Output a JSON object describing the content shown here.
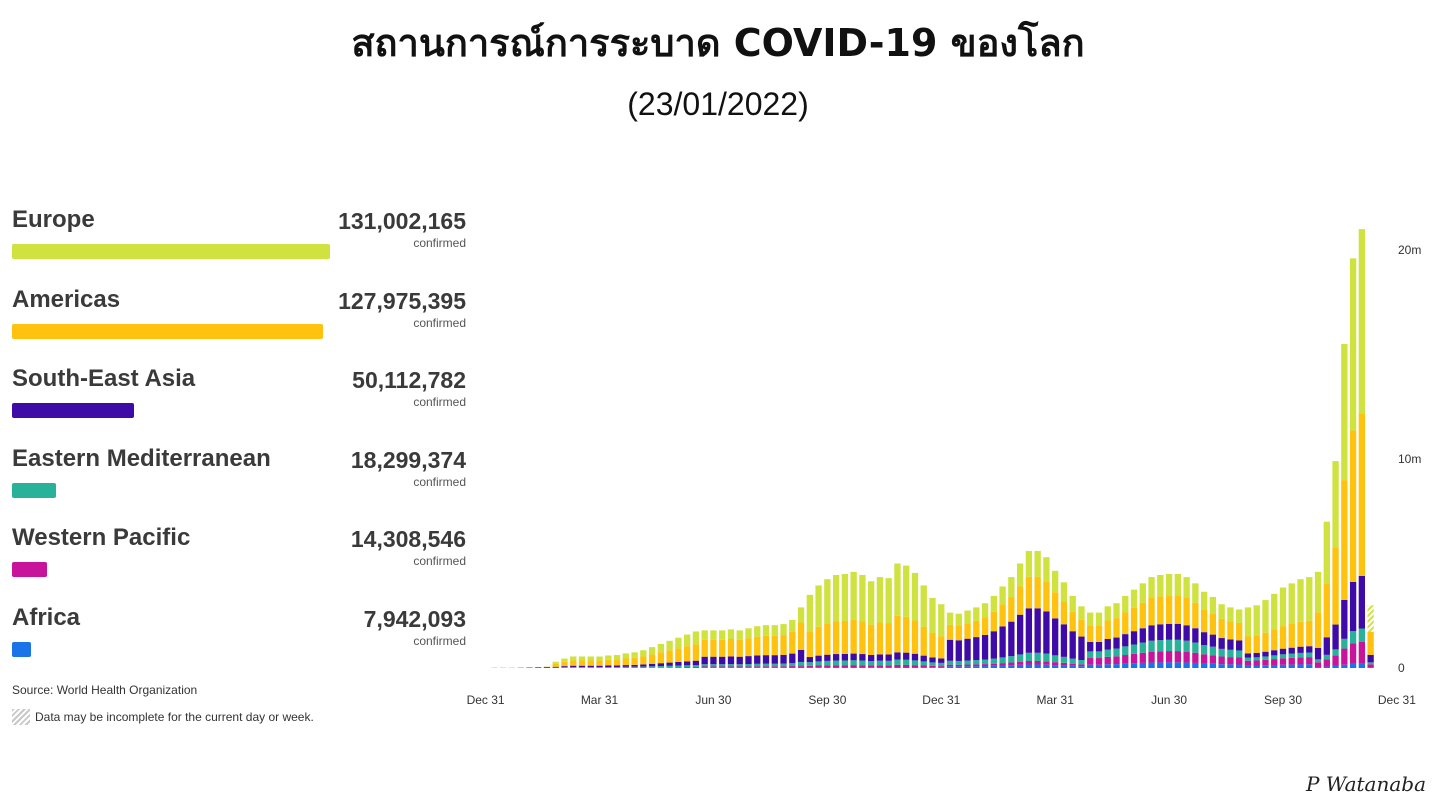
{
  "header": {
    "title": "สถานการณ์การระบาด COVID-19 ของโลก",
    "subtitle": "(23/01/2022)"
  },
  "regions": [
    {
      "name": "Europe",
      "value": "131,002,165",
      "unit": "confirmed",
      "color": "#cfe23f"
    },
    {
      "name": "Americas",
      "value": "127,975,395",
      "unit": "confirmed",
      "color": "#fec20f"
    },
    {
      "name": "South-East Asia",
      "value": "50,112,782",
      "unit": "confirmed",
      "color": "#3f0ba6"
    },
    {
      "name": "Eastern Mediterranean",
      "value": "18,299,374",
      "unit": "confirmed",
      "color": "#27b299"
    },
    {
      "name": "Western Pacific",
      "value": "14,308,546",
      "unit": "confirmed",
      "color": "#c7149a"
    },
    {
      "name": "Africa",
      "value": "7,942,093",
      "unit": "confirmed",
      "color": "#1a73e8"
    }
  ],
  "footer": {
    "source": "Source: World Health Organization",
    "note": "Data may be incomplete for the current day or week.",
    "signature": "P Watanaba"
  },
  "chart_data": {
    "type": "bar",
    "stacked": true,
    "x_tick_labels": [
      "Dec 31",
      "Mar 31",
      "Jun 30",
      "Sep 30",
      "Dec 31",
      "Mar 31",
      "Jun 30",
      "Sep 30",
      "Dec 31"
    ],
    "y_tick_labels": [
      "0",
      "10m",
      "20m"
    ],
    "ylim": [
      0,
      20000000
    ],
    "series": [
      {
        "name": "Africa",
        "color": "#1a73e8",
        "values": [
          0,
          0,
          0,
          0,
          0,
          0,
          0,
          0,
          0,
          0,
          0,
          0,
          0,
          0,
          0,
          0,
          0,
          0,
          0,
          0,
          0,
          0,
          0,
          0,
          0,
          0,
          0,
          0,
          0,
          0,
          0,
          0,
          0,
          0,
          0,
          0,
          0,
          0,
          0,
          0,
          0,
          0,
          0,
          0,
          0,
          0,
          0,
          0,
          0,
          0,
          0,
          0,
          0,
          0,
          0,
          0,
          0,
          0,
          0,
          0,
          0,
          0,
          0,
          0,
          0,
          0,
          0,
          0,
          0,
          0,
          0,
          0,
          0,
          0,
          0,
          0,
          0,
          0,
          0,
          0,
          0,
          0,
          0,
          0,
          0,
          0,
          0,
          0,
          0,
          0,
          0,
          0,
          0,
          0,
          0,
          0,
          0,
          0,
          0,
          0,
          0,
          0,
          0,
          0,
          0,
          0,
          0,
          0,
          0,
          0,
          0,
          0,
          0,
          0,
          0,
          0,
          0,
          0,
          0,
          0,
          0,
          0,
          0,
          0
        ]
      },
      {
        "name": "Western Pacific",
        "color": "#c7149a",
        "values": [
          0,
          0,
          0,
          0,
          0,
          0,
          0,
          0,
          0,
          0,
          0,
          0,
          0,
          0,
          0,
          0,
          0,
          0,
          0,
          0,
          0,
          0,
          0,
          0,
          0,
          0,
          0,
          0,
          0,
          0,
          0,
          0,
          0,
          0,
          0,
          0,
          0,
          0,
          0,
          0,
          0,
          0,
          0,
          0,
          0,
          0,
          0,
          0,
          0,
          0,
          0,
          0,
          0,
          0,
          0,
          0,
          0,
          0,
          0,
          0,
          0,
          0,
          0,
          0,
          0,
          0,
          0,
          0,
          0,
          0,
          0,
          0,
          0,
          0,
          0,
          0,
          0,
          0,
          0,
          0,
          0,
          0,
          0,
          0,
          0,
          0,
          0,
          0,
          0,
          0,
          0,
          0,
          0,
          0,
          0,
          0,
          0,
          0,
          0,
          0,
          0,
          0,
          0,
          0,
          0,
          0,
          0,
          0,
          0,
          0,
          0,
          0,
          0,
          0,
          0,
          0,
          0,
          0,
          0,
          0,
          0,
          0,
          0,
          0
        ]
      },
      {
        "name": "Eastern Mediterranean",
        "color": "#27b299",
        "values": [
          0,
          0,
          0,
          0,
          0,
          0,
          0,
          0,
          0,
          0,
          0,
          0,
          0,
          0,
          0,
          0,
          0,
          0,
          0,
          0,
          0,
          0,
          0,
          0,
          0,
          0,
          0,
          0,
          0,
          0,
          0,
          0,
          0,
          0,
          0,
          0,
          0,
          0,
          0,
          0,
          0,
          0,
          0,
          0,
          0,
          0,
          0,
          0,
          0,
          0,
          0,
          0,
          0,
          0,
          0,
          0,
          0,
          0,
          0,
          0,
          0,
          0,
          0,
          0,
          0,
          0,
          0,
          0,
          0,
          0,
          0,
          0,
          0,
          0,
          0,
          0,
          0,
          0,
          0,
          0,
          0,
          0,
          0,
          0,
          0,
          0,
          0,
          0,
          0,
          0,
          0,
          0,
          0,
          0,
          0,
          0,
          0,
          0,
          0,
          0,
          0,
          0,
          0,
          0,
          0,
          0,
          0,
          0,
          0,
          0,
          0,
          0,
          0,
          0,
          0,
          0,
          0,
          0,
          0,
          0,
          0,
          0,
          0,
          0
        ]
      },
      {
        "name": "South-East Asia",
        "color": "#3f0ba6",
        "values": [
          0,
          0,
          0,
          0,
          0,
          0,
          0,
          0,
          0,
          0,
          0,
          0,
          0,
          0,
          0,
          0,
          0,
          0,
          0,
          0,
          0,
          0,
          0,
          0,
          0,
          0,
          0,
          0,
          0,
          0,
          0,
          0,
          0,
          0,
          0,
          0,
          0,
          0,
          0,
          0,
          0,
          0,
          0,
          0,
          0,
          0,
          0,
          0,
          0,
          0,
          0,
          0,
          0,
          0,
          0,
          0,
          0,
          0,
          0,
          0,
          0,
          0,
          0,
          0,
          0,
          0,
          0,
          0,
          0,
          0,
          0,
          0,
          0,
          0,
          0,
          0,
          0,
          0,
          0,
          0,
          0,
          0,
          0,
          0,
          0,
          0,
          0,
          0,
          0,
          0,
          0,
          0,
          0,
          0,
          0,
          0,
          0,
          0,
          0,
          0,
          0,
          0,
          0,
          0,
          0,
          0,
          0,
          0,
          0,
          0,
          0,
          0,
          0,
          0,
          0,
          0,
          0,
          0,
          0,
          0,
          0,
          0,
          0,
          0
        ]
      },
      {
        "name": "Americas",
        "color": "#fec20f",
        "values": [
          0,
          0,
          0,
          0,
          0,
          0,
          0,
          0,
          0,
          0,
          0,
          0,
          0,
          0,
          0,
          0,
          0,
          0,
          0,
          0,
          0,
          0,
          0,
          0,
          0,
          0,
          0,
          0,
          0,
          0,
          0,
          0,
          0,
          0,
          0,
          0,
          0,
          0,
          0,
          0,
          0,
          0,
          0,
          0,
          0,
          0,
          0,
          0,
          0,
          0,
          0,
          0,
          0,
          0,
          0,
          0,
          0,
          0,
          0,
          0,
          0,
          0,
          0,
          0,
          0,
          0,
          0,
          0,
          0,
          0,
          0,
          0,
          0,
          0,
          0,
          0,
          0,
          0,
          0,
          0,
          0,
          0,
          0,
          0,
          0,
          0,
          0,
          0,
          0,
          0,
          0,
          0,
          0,
          0,
          0,
          0,
          0,
          0,
          0,
          0,
          0,
          0,
          0,
          0,
          0,
          0,
          0,
          0,
          0,
          0,
          0,
          0,
          0,
          0,
          0,
          0,
          0,
          0,
          0,
          0,
          0,
          0,
          0,
          0
        ]
      },
      {
        "name": "Europe",
        "color": "#cfe23f",
        "values": [
          0,
          0,
          0,
          0,
          0,
          0,
          0,
          0,
          0,
          0,
          0,
          0,
          0,
          0,
          0,
          0,
          0,
          0,
          0,
          0,
          0,
          0,
          0,
          0,
          0,
          0,
          0,
          0,
          0,
          0,
          0,
          0,
          0,
          0,
          0,
          0,
          0,
          0,
          0,
          0,
          0,
          0,
          0,
          0,
          0,
          0,
          0,
          0,
          0,
          0,
          0,
          0,
          0,
          0,
          0,
          0,
          0,
          0,
          0,
          0,
          0,
          0,
          0,
          0,
          0,
          0,
          0,
          0,
          0,
          0,
          0,
          0,
          0,
          0,
          0,
          0,
          0,
          0,
          0,
          0,
          0,
          0,
          0,
          0,
          0,
          0,
          0,
          0,
          0,
          0,
          0,
          0,
          0,
          0,
          0,
          0,
          0,
          0,
          0,
          0,
          0,
          0,
          0,
          0,
          0,
          0,
          0,
          0,
          0,
          0,
          0,
          0,
          0,
          0,
          0,
          0,
          0,
          0,
          0,
          0,
          0,
          0,
          0,
          0
        ]
      }
    ],
    "totals_m": [
      0.01,
      0.01,
      0.01,
      0.02,
      0.03,
      0.05,
      0.07,
      0.3,
      0.45,
      0.55,
      0.55,
      0.55,
      0.55,
      0.6,
      0.62,
      0.7,
      0.75,
      0.85,
      1.0,
      1.15,
      1.3,
      1.45,
      1.6,
      1.75,
      1.8,
      1.8,
      1.8,
      1.85,
      1.8,
      1.9,
      2.0,
      2.05,
      2.05,
      2.1,
      2.3,
      2.9,
      3.5,
      3.95,
      4.25,
      4.45,
      4.5,
      4.6,
      4.45,
      4.15,
      4.35,
      4.3,
      5.0,
      4.9,
      4.55,
      3.95,
      3.35,
      3.05,
      2.65,
      2.6,
      2.75,
      2.9,
      3.1,
      3.45,
      3.9,
      4.35,
      5.0,
      5.6,
      5.6,
      5.3,
      4.65,
      4.1,
      3.45,
      2.95,
      2.65,
      2.65,
      2.95,
      3.1,
      3.45,
      3.75,
      4.05,
      4.35,
      4.45,
      4.5,
      4.5,
      4.35,
      4.05,
      3.65,
      3.4,
      3.05,
      2.9,
      2.8,
      2.9,
      3.0,
      3.25,
      3.55,
      3.85,
      4.05,
      4.25,
      4.35,
      4.6,
      7.0,
      9.9,
      15.5,
      19.6,
      21.0,
      3.0
    ],
    "mix": "europe/americas/sea/em/wp/af fractions per bar"
  }
}
